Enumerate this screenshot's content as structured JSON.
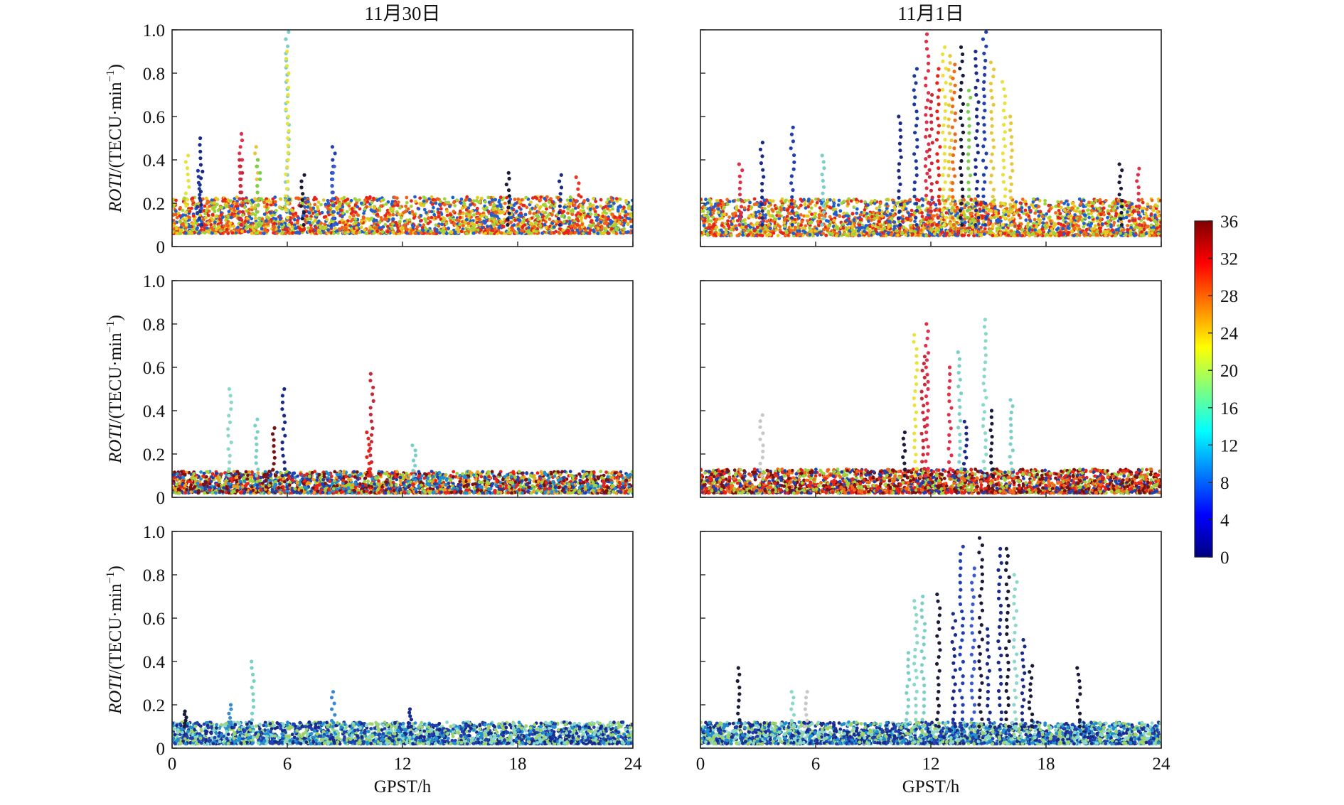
{
  "chart_data": [
    {
      "type": "scatter",
      "title": "11月30日",
      "ylabel_prefix": "ROTI",
      "ylabel_suffix": "/(TECU·min",
      "ylabel_exp": "−1",
      "ylabel_close": ")",
      "xlabel": "",
      "xlim": [
        0,
        24
      ],
      "ylim": [
        0,
        1.0
      ],
      "xticks": [
        "0",
        "6",
        "12",
        "18",
        "24"
      ],
      "yticks": [
        "0",
        "0.2",
        "0.4",
        "0.6",
        "0.8",
        "1.0"
      ],
      "grid": false,
      "bands": [
        {
          "x": [
            0,
            24
          ],
          "y": [
            0.06,
            0.23
          ],
          "colors": [
            "#e8231a",
            "#f0601a",
            "#e6c81e",
            "#9ed33a",
            "#1f5fd0"
          ]
        }
      ],
      "spikes": [
        [
          0.8,
          0.42,
          "#e8e23a"
        ],
        [
          1.5,
          0.5,
          "#1a2a8a"
        ],
        [
          1.4,
          0.35,
          "#1a3a9e"
        ],
        [
          3.6,
          0.52,
          "#e0304a"
        ],
        [
          3.6,
          0.4,
          "#c82a3a"
        ],
        [
          4.4,
          0.46,
          "#e8c83a"
        ],
        [
          4.5,
          0.4,
          "#7ad04a"
        ],
        [
          6.0,
          0.99,
          "#7ad0c8"
        ],
        [
          6.0,
          0.9,
          "#e8e23a"
        ],
        [
          6.8,
          0.33,
          "#1a1a3a"
        ],
        [
          8.4,
          0.46,
          "#2040b0"
        ],
        [
          8.4,
          0.37,
          "#3a5ad0"
        ],
        [
          17.5,
          0.34,
          "#1a1a3a"
        ],
        [
          20.2,
          0.33,
          "#1a2a8a"
        ],
        [
          21.1,
          0.32,
          "#e83a20"
        ]
      ],
      "series_note": "color = satellite index (0–36)"
    },
    {
      "type": "scatter",
      "title": "11月1日",
      "xlabel": "",
      "xlim": [
        0,
        24
      ],
      "ylim": [
        0,
        1.0
      ],
      "xticks": [
        "0",
        "6",
        "12",
        "18",
        "24"
      ],
      "yticks": [],
      "grid": false,
      "bands": [
        {
          "x": [
            0,
            24
          ],
          "y": [
            0.05,
            0.22
          ],
          "colors": [
            "#e8231a",
            "#f06a1a",
            "#e6c81e",
            "#9ed33a",
            "#1f5fd0"
          ]
        }
      ],
      "spikes": [
        [
          2.1,
          0.38,
          "#e0304a"
        ],
        [
          3.2,
          0.48,
          "#1a2a8a"
        ],
        [
          4.8,
          0.55,
          "#2040b0"
        ],
        [
          6.4,
          0.42,
          "#7ad0c8"
        ],
        [
          10.4,
          0.6,
          "#1a2a8a"
        ],
        [
          11.2,
          0.82,
          "#1a3a9e"
        ],
        [
          11.8,
          0.98,
          "#e0304a"
        ],
        [
          12.0,
          0.7,
          "#c82a3a"
        ],
        [
          12.4,
          0.82,
          "#e8231a"
        ],
        [
          12.7,
          0.92,
          "#e8e23a"
        ],
        [
          13.0,
          0.88,
          "#e8c83a"
        ],
        [
          13.2,
          0.84,
          "#f06a1a"
        ],
        [
          13.6,
          0.92,
          "#1a1a3a"
        ],
        [
          14.0,
          0.72,
          "#7ad04a"
        ],
        [
          14.4,
          0.9,
          "#1a2a8a"
        ],
        [
          14.8,
          0.99,
          "#2040b0"
        ],
        [
          15.2,
          0.85,
          "#e8c83a"
        ],
        [
          15.8,
          0.76,
          "#e8e23a"
        ],
        [
          16.2,
          0.6,
          "#e8c83a"
        ],
        [
          21.9,
          0.38,
          "#1a1a3a"
        ],
        [
          22.8,
          0.36,
          "#e0304a"
        ]
      ],
      "series_note": "color = satellite index (0–36)"
    },
    {
      "type": "scatter",
      "title": "",
      "ylabel_prefix": "ROTI",
      "ylabel_suffix": "/(TECU·min",
      "ylabel_exp": "−1",
      "ylabel_close": ")",
      "xlabel": "",
      "xlim": [
        0,
        24
      ],
      "ylim": [
        0,
        1.0
      ],
      "xticks": [
        "0",
        "6",
        "12",
        "18",
        "24"
      ],
      "yticks": [
        "0",
        "0.2",
        "0.4",
        "0.6",
        "0.8",
        "1.0"
      ],
      "grid": false,
      "bands": [
        {
          "x": [
            0,
            24
          ],
          "y": [
            0.02,
            0.12
          ],
          "colors": [
            "#e8231a",
            "#7a1010",
            "#f0a01a",
            "#2040b0",
            "#9ed33a",
            "#1f8fd0"
          ]
        }
      ],
      "spikes": [
        [
          3.0,
          0.5,
          "#8ad8c8"
        ],
        [
          4.4,
          0.36,
          "#7ad0c8"
        ],
        [
          5.3,
          0.32,
          "#7a1010"
        ],
        [
          5.8,
          0.5,
          "#1a2a8a"
        ],
        [
          10.4,
          0.57,
          "#c82a3a"
        ],
        [
          10.2,
          0.3,
          "#e8231a"
        ],
        [
          12.6,
          0.24,
          "#7ad0c8"
        ]
      ],
      "series_note": "color = satellite index (0–36)"
    },
    {
      "type": "scatter",
      "title": "",
      "xlabel": "",
      "xlim": [
        0,
        24
      ],
      "ylim": [
        0,
        1.0
      ],
      "xticks": [
        "0",
        "6",
        "12",
        "18",
        "24"
      ],
      "yticks": [],
      "grid": false,
      "bands": [
        {
          "x": [
            0,
            24
          ],
          "y": [
            0.02,
            0.13
          ],
          "colors": [
            "#e8231a",
            "#7a1010",
            "#f06a1a",
            "#2040b0",
            "#9ed33a"
          ]
        }
      ],
      "spikes": [
        [
          3.2,
          0.38,
          "#c8c8c8"
        ],
        [
          10.6,
          0.3,
          "#1a1a3a"
        ],
        [
          11.2,
          0.75,
          "#e8e23a"
        ],
        [
          11.6,
          0.65,
          "#c82a3a"
        ],
        [
          11.8,
          0.8,
          "#e0304a"
        ],
        [
          13.0,
          0.6,
          "#e0304a"
        ],
        [
          13.5,
          0.67,
          "#7ad0c8"
        ],
        [
          14.8,
          0.82,
          "#8ad8c8"
        ],
        [
          16.2,
          0.45,
          "#7ad0c8"
        ],
        [
          15.2,
          0.4,
          "#1a1a3a"
        ],
        [
          13.8,
          0.35,
          "#1a2a8a"
        ]
      ],
      "series_note": "color = satellite index (0–36)"
    },
    {
      "type": "scatter",
      "title": "",
      "ylabel_prefix": "ROTI",
      "ylabel_suffix": "/(TECU·min",
      "ylabel_exp": "−1",
      "ylabel_close": ")",
      "xlabel": "GPST/h",
      "xlim": [
        0,
        24
      ],
      "ylim": [
        0,
        1.0
      ],
      "xticks": [
        "0",
        "6",
        "12",
        "18",
        "24"
      ],
      "yticks": [
        "0",
        "0.2",
        "0.4",
        "0.6",
        "0.8",
        "1.0"
      ],
      "grid": false,
      "bands": [
        {
          "x": [
            0,
            24
          ],
          "y": [
            0.02,
            0.12
          ],
          "colors": [
            "#9ed36a",
            "#8ad8c8",
            "#2040b0",
            "#1f8fd0",
            "#1a2a8a"
          ]
        }
      ],
      "spikes": [
        [
          0.7,
          0.17,
          "#1a1a3a"
        ],
        [
          3.0,
          0.2,
          "#3a8ad0"
        ],
        [
          4.2,
          0.4,
          "#7ad0c8"
        ],
        [
          8.4,
          0.26,
          "#3a8ad0"
        ],
        [
          12.4,
          0.18,
          "#1a2a8a"
        ]
      ],
      "series_note": "color = satellite index (0–36)"
    },
    {
      "type": "scatter",
      "title": "",
      "xlabel": "GPST/h",
      "xlim": [
        0,
        24
      ],
      "ylim": [
        0,
        1.0
      ],
      "xticks": [
        "0",
        "6",
        "12",
        "18",
        "24"
      ],
      "yticks": [],
      "grid": false,
      "bands": [
        {
          "x": [
            0,
            24
          ],
          "y": [
            0.02,
            0.12
          ],
          "colors": [
            "#9ed36a",
            "#8ad8c8",
            "#2040b0",
            "#1f8fd0",
            "#1a2a8a"
          ]
        }
      ],
      "spikes": [
        [
          2.0,
          0.37,
          "#1a1a3a"
        ],
        [
          4.8,
          0.26,
          "#8ad8c8"
        ],
        [
          5.5,
          0.26,
          "#c8c8c8"
        ],
        [
          10.8,
          0.44,
          "#7ad0c8"
        ],
        [
          11.2,
          0.68,
          "#8ad8c8"
        ],
        [
          11.6,
          0.7,
          "#7ad0c8"
        ],
        [
          12.4,
          0.71,
          "#1a1a3a"
        ],
        [
          13.2,
          0.62,
          "#1a2a8a"
        ],
        [
          13.6,
          0.93,
          "#2040b0"
        ],
        [
          14.2,
          0.83,
          "#3a5ad0"
        ],
        [
          14.6,
          0.97,
          "#1a1a3a"
        ],
        [
          15.0,
          0.55,
          "#1a2a8a"
        ],
        [
          15.6,
          0.92,
          "#1a2a8a"
        ],
        [
          16.0,
          0.92,
          "#1a1a3a"
        ],
        [
          16.4,
          0.8,
          "#8ad8c8"
        ],
        [
          16.8,
          0.5,
          "#1a2a8a"
        ],
        [
          17.2,
          0.38,
          "#1a1a3a"
        ],
        [
          19.7,
          0.37,
          "#1a1a3a"
        ]
      ],
      "series_note": "color = satellite index (0–36)"
    }
  ],
  "colorbar": {
    "ticks": [
      "0",
      "4",
      "8",
      "12",
      "16",
      "20",
      "24",
      "28",
      "32",
      "36"
    ],
    "min": 0,
    "max": 36,
    "colormap": [
      "#00007f",
      "#0000ff",
      "#007fff",
      "#00ffff",
      "#7fff7f",
      "#ffff00",
      "#ff7f00",
      "#ff0000",
      "#7f0000"
    ]
  }
}
